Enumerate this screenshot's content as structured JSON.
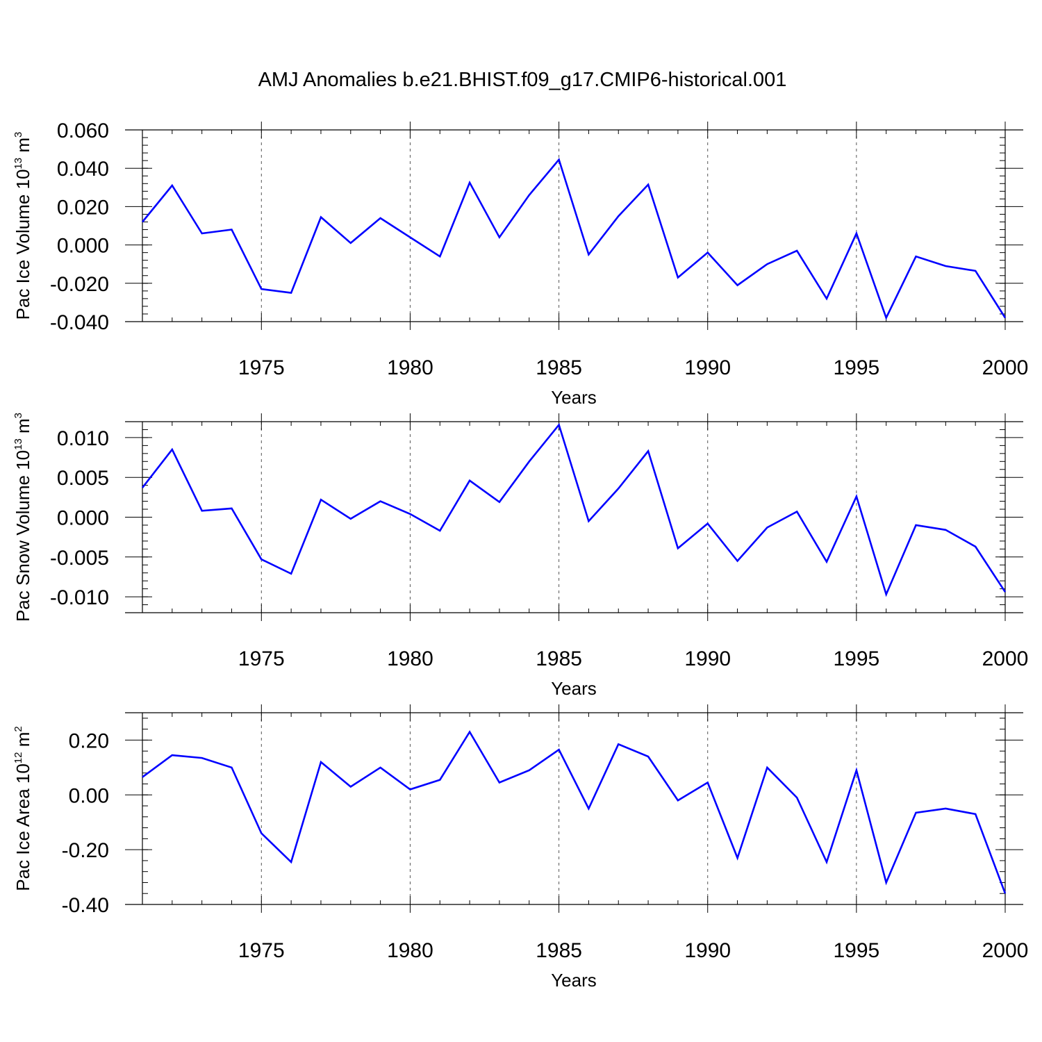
{
  "chart_data": {
    "type": "line",
    "title": "AMJ Anomalies b.e21.BHIST.f09_g17.CMIP6-historical.001",
    "line_color": "#0000ff",
    "x": [
      1971,
      1972,
      1973,
      1974,
      1975,
      1976,
      1977,
      1978,
      1979,
      1980,
      1981,
      1982,
      1983,
      1984,
      1985,
      1986,
      1987,
      1988,
      1989,
      1990,
      1991,
      1992,
      1993,
      1994,
      1995,
      1996,
      1997,
      1998,
      1999,
      2000
    ],
    "xlim": [
      1971,
      2000
    ],
    "xticks": [
      1975,
      1980,
      1985,
      1990,
      1995,
      2000
    ],
    "xlabel": "Years",
    "panels": [
      {
        "ylabel_text": "Pac Ice Volume 10",
        "ylabel_exp": "13",
        "ylabel_unit": " m",
        "ylabel_unit_exp": "3",
        "ylim": [
          -0.04,
          0.06
        ],
        "yticks": [
          -0.04,
          -0.02,
          0.0,
          0.02,
          0.04,
          0.06
        ],
        "ytick_labels": [
          "-0.040",
          "-0.020",
          "0.000",
          "0.020",
          "0.040",
          "0.060"
        ],
        "values": [
          0.012,
          0.031,
          0.006,
          0.008,
          -0.023,
          -0.025,
          0.0145,
          0.001,
          0.014,
          0.004,
          -0.006,
          0.0325,
          0.004,
          0.026,
          0.0445,
          -0.005,
          0.015,
          0.0315,
          -0.017,
          -0.004,
          -0.021,
          -0.01,
          -0.003,
          -0.028,
          0.006,
          -0.038,
          -0.006,
          -0.011,
          -0.0135,
          -0.038
        ]
      },
      {
        "ylabel_text": "Pac Snow Volume 10",
        "ylabel_exp": "13",
        "ylabel_unit": " m",
        "ylabel_unit_exp": "3",
        "ylim": [
          -0.012,
          0.012
        ],
        "yticks": [
          -0.01,
          -0.005,
          0.0,
          0.005,
          0.01
        ],
        "ytick_labels": [
          "-0.010",
          "-0.005",
          "0.000",
          "0.005",
          "0.010"
        ],
        "values": [
          0.0037,
          0.0085,
          0.0008,
          0.0011,
          -0.0053,
          -0.0071,
          0.0022,
          -0.0002,
          0.002,
          0.0004,
          -0.0017,
          0.0046,
          0.0019,
          0.007,
          0.0116,
          -0.0005,
          0.0036,
          0.0083,
          -0.0039,
          -0.0008,
          -0.0055,
          -0.0013,
          0.0007,
          -0.0056,
          0.0026,
          -0.0097,
          -0.001,
          -0.0016,
          -0.0037,
          -0.0094
        ]
      },
      {
        "ylabel_text": "Pac Ice Area 10",
        "ylabel_exp": "12",
        "ylabel_unit": " m",
        "ylabel_unit_exp": "2",
        "ylim": [
          -0.4,
          0.3
        ],
        "yticks": [
          -0.4,
          -0.2,
          0.0,
          0.2
        ],
        "ytick_labels": [
          "-0.40",
          "-0.20",
          "0.00",
          "0.20"
        ],
        "values": [
          0.065,
          0.145,
          0.135,
          0.1,
          -0.14,
          -0.245,
          0.12,
          0.03,
          0.1,
          0.02,
          0.055,
          0.23,
          0.045,
          0.09,
          0.165,
          -0.05,
          0.185,
          0.14,
          -0.02,
          0.045,
          -0.23,
          0.1,
          -0.01,
          -0.245,
          0.09,
          -0.32,
          -0.065,
          -0.05,
          -0.07,
          -0.36
        ]
      }
    ]
  }
}
